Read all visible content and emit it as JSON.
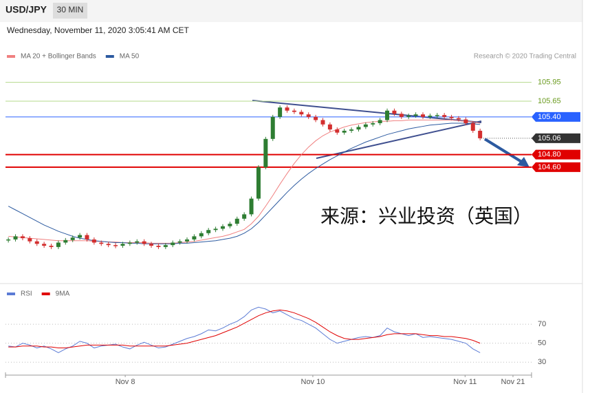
{
  "header": {
    "symbol": "USD/JPY",
    "interval": "30 MIN",
    "date": "Wednesday, November 11, 2020 3:05:41 AM CET"
  },
  "chart_data": [
    {
      "type": "candlestick",
      "credit": "Research © 2020 Trading Central",
      "watermark": "来源：兴业投资（英国）",
      "up_color": "#2e7d32",
      "down_color": "#d32f2f",
      "x": [
        0,
        1,
        2,
        3,
        4,
        5,
        6,
        7,
        8,
        9,
        10,
        11,
        12,
        13,
        14,
        15,
        16,
        17,
        18,
        19,
        20,
        21,
        22,
        23,
        24,
        25,
        26,
        27,
        28,
        29,
        30,
        31,
        32,
        33,
        34,
        35,
        36,
        37,
        38,
        39,
        40,
        41,
        42,
        43,
        44,
        45,
        46,
        47,
        48,
        49,
        50,
        51,
        52,
        53,
        54,
        55,
        56,
        57,
        58,
        59,
        60,
        61,
        62,
        63,
        64,
        65,
        66
      ],
      "values": [
        103.45,
        103.5,
        103.47,
        103.42,
        103.38,
        103.35,
        103.33,
        103.4,
        103.44,
        103.48,
        103.52,
        103.45,
        103.4,
        103.38,
        103.36,
        103.35,
        103.38,
        103.4,
        103.42,
        103.38,
        103.35,
        103.33,
        103.36,
        103.4,
        103.42,
        103.45,
        103.5,
        103.55,
        103.6,
        103.62,
        103.66,
        103.7,
        103.78,
        103.85,
        104.1,
        104.6,
        105.05,
        105.4,
        105.55,
        105.5,
        105.48,
        105.44,
        105.4,
        105.35,
        105.28,
        105.2,
        105.15,
        105.18,
        105.2,
        105.24,
        105.28,
        105.3,
        105.35,
        105.5,
        105.45,
        105.4,
        105.42,
        105.44,
        105.4,
        105.42,
        105.43,
        105.4,
        105.38,
        105.36,
        105.3,
        105.18,
        105.06
      ],
      "series": [
        {
          "name": "MA 20 + Bollinger Bands",
          "color": "#f08080",
          "values": [
            103.5,
            103.49,
            103.48,
            103.47,
            103.46,
            103.45,
            103.44,
            103.43,
            103.43,
            103.43,
            103.43,
            103.43,
            103.42,
            103.42,
            103.41,
            103.41,
            103.4,
            103.4,
            103.4,
            103.4,
            103.39,
            103.39,
            103.39,
            103.39,
            103.4,
            103.41,
            103.42,
            103.44,
            103.46,
            103.48,
            103.5,
            103.53,
            103.57,
            103.61,
            103.7,
            103.82,
            103.98,
            104.15,
            104.33,
            104.5,
            104.66,
            104.8,
            104.92,
            105.02,
            105.1,
            105.16,
            105.2,
            105.24,
            105.27,
            105.29,
            105.31,
            105.32,
            105.33,
            105.33,
            105.34,
            105.34,
            105.35,
            105.35,
            105.35,
            105.35,
            105.35,
            105.35,
            105.35,
            105.34,
            105.33,
            105.32,
            105.3
          ]
        },
        {
          "name": "MA 50",
          "color": "#2c5aa0",
          "values": [
            103.98,
            103.92,
            103.86,
            103.8,
            103.74,
            103.68,
            103.63,
            103.58,
            103.54,
            103.5,
            103.47,
            103.45,
            103.43,
            103.42,
            103.41,
            103.4,
            103.4,
            103.39,
            103.39,
            103.38,
            103.38,
            103.38,
            103.38,
            103.38,
            103.39,
            103.39,
            103.4,
            103.41,
            103.42,
            103.43,
            103.45,
            103.47,
            103.5,
            103.55,
            103.62,
            103.72,
            103.84,
            103.96,
            104.08,
            104.2,
            104.31,
            104.41,
            104.5,
            104.58,
            104.65,
            104.72,
            104.78,
            104.84,
            104.9,
            104.95,
            105.0,
            105.04,
            105.08,
            105.12,
            105.15,
            105.18,
            105.21,
            105.23,
            105.25,
            105.27,
            105.28,
            105.29,
            105.3,
            105.3,
            105.3,
            105.29,
            105.28
          ]
        }
      ],
      "xlim": [
        -0.4,
        73.2
      ],
      "ylim": [
        102.77,
        106.22
      ],
      "levels": [
        {
          "value": 105.95,
          "label": "105.95",
          "color": "#b5d98b",
          "style": "text"
        },
        {
          "value": 105.65,
          "label": "105.65",
          "color": "#b5d98b",
          "style": "text"
        },
        {
          "value": 105.4,
          "label": "105.40",
          "color": "#2962ff",
          "style": "box"
        },
        {
          "value": 105.06,
          "label": "105.06",
          "color": "#333333",
          "style": "current"
        },
        {
          "value": 104.8,
          "label": "104.80",
          "color": "#e00000",
          "style": "box"
        },
        {
          "value": 104.6,
          "label": "104.60",
          "color": "#e00000",
          "style": "box"
        }
      ]
    },
    {
      "type": "line",
      "x": [
        0,
        1,
        2,
        3,
        4,
        5,
        6,
        7,
        8,
        9,
        10,
        11,
        12,
        13,
        14,
        15,
        16,
        17,
        18,
        19,
        20,
        21,
        22,
        23,
        24,
        25,
        26,
        27,
        28,
        29,
        30,
        31,
        32,
        33,
        34,
        35,
        36,
        37,
        38,
        39,
        40,
        41,
        42,
        43,
        44,
        45,
        46,
        47,
        48,
        49,
        50,
        51,
        52,
        53,
        54,
        55,
        56,
        57,
        58,
        59,
        60,
        61,
        62,
        63,
        64,
        65,
        66
      ],
      "series": [
        {
          "name": "RSI",
          "color": "#5b7bd5",
          "values": [
            47,
            46,
            50,
            48,
            45,
            47,
            44,
            40,
            44,
            47,
            52,
            50,
            45,
            47,
            48,
            49,
            46,
            44,
            48,
            51,
            48,
            45,
            46,
            49,
            52,
            55,
            57,
            60,
            64,
            63,
            66,
            70,
            73,
            78,
            85,
            88,
            86,
            82,
            84,
            80,
            76,
            74,
            70,
            66,
            60,
            54,
            50,
            52,
            54,
            56,
            57,
            56,
            58,
            66,
            62,
            60,
            58,
            60,
            56,
            57,
            56,
            55,
            54,
            52,
            50,
            44,
            40
          ]
        },
        {
          "name": "9MA",
          "color": "#e00000",
          "values": [
            46,
            46,
            47,
            47,
            47,
            46,
            46,
            45,
            45,
            46,
            47,
            48,
            48,
            48,
            48,
            48,
            48,
            47,
            47,
            47,
            47,
            47,
            47,
            48,
            49,
            50,
            52,
            54,
            56,
            58,
            61,
            64,
            67,
            71,
            75,
            79,
            82,
            84,
            85,
            84,
            82,
            79,
            76,
            72,
            67,
            62,
            58,
            55,
            54,
            54,
            55,
            56,
            57,
            59,
            60,
            60,
            60,
            60,
            59,
            58,
            58,
            57,
            57,
            56,
            55,
            53,
            50
          ]
        }
      ],
      "xlim": [
        -0.4,
        73.2
      ],
      "ylim": [
        20,
        94
      ],
      "yticks": [
        30,
        50,
        70
      ],
      "xticks": [
        {
          "value": 16.35,
          "label": "Nov 8"
        },
        {
          "value": 42.6,
          "label": "Nov 10"
        },
        {
          "value": 63.9,
          "label": "Nov 11"
        },
        {
          "value": 70.6,
          "label": "Nov 21"
        }
      ]
    }
  ]
}
